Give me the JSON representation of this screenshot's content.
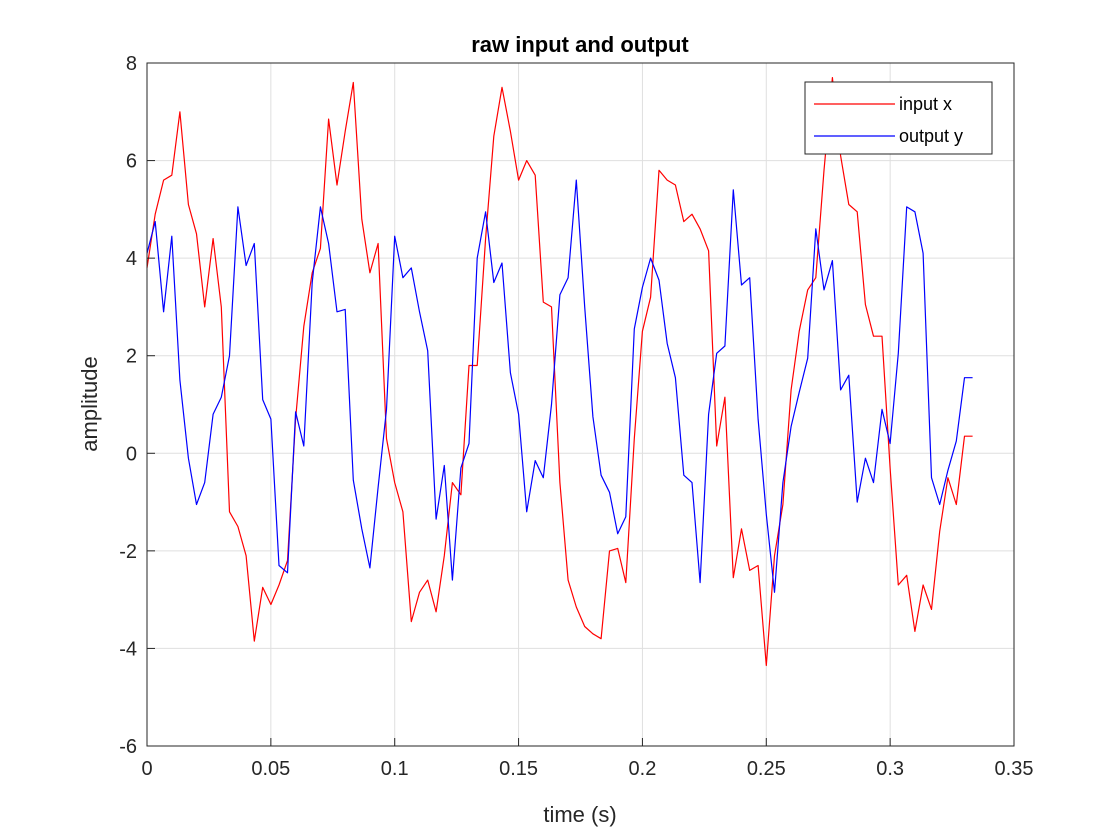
{
  "chart_data": {
    "type": "line",
    "title": "raw input and output",
    "xlabel": "time (s)",
    "ylabel": "amplitude",
    "xlim": [
      0,
      0.35
    ],
    "ylim": [
      -6,
      8
    ],
    "xticks": [
      0,
      0.05,
      0.1,
      0.15,
      0.2,
      0.25,
      0.3,
      0.35
    ],
    "xtick_labels": [
      "0",
      "0.05",
      "0.1",
      "0.15",
      "0.2",
      "0.25",
      "0.3",
      "0.35"
    ],
    "yticks": [
      -6,
      -4,
      -2,
      0,
      2,
      4,
      6,
      8
    ],
    "ytick_labels": [
      "-6",
      "-4",
      "-2",
      "0",
      "2",
      "4",
      "6",
      "8"
    ],
    "grid": true,
    "legend_position": "top-right",
    "series": [
      {
        "name": "input x",
        "color": "#ff0000",
        "x": [
          0,
          0.0033,
          0.0067,
          0.01,
          0.0133,
          0.0167,
          0.02,
          0.0233,
          0.0267,
          0.03,
          0.0333,
          0.0367,
          0.04,
          0.0433,
          0.0467,
          0.05,
          0.0533,
          0.0567,
          0.06,
          0.0633,
          0.0667,
          0.07,
          0.0733,
          0.0767,
          0.08,
          0.0833,
          0.0867,
          0.09,
          0.0933,
          0.0967,
          0.1,
          0.1033,
          0.1067,
          0.11,
          0.1133,
          0.1167,
          0.12,
          0.1233,
          0.1267,
          0.13,
          0.1333,
          0.1367,
          0.14,
          0.1433,
          0.1467,
          0.15,
          0.1533,
          0.1567,
          0.16,
          0.1633,
          0.1667,
          0.17,
          0.1733,
          0.1767,
          0.18,
          0.1833,
          0.1867,
          0.19,
          0.1933,
          0.1967,
          0.2,
          0.2033,
          0.2067,
          0.21,
          0.2133,
          0.2167,
          0.22,
          0.2233,
          0.2267,
          0.23,
          0.2333,
          0.2367,
          0.24,
          0.2433,
          0.2467,
          0.25,
          0.2533,
          0.2567,
          0.26,
          0.2633,
          0.2667,
          0.27,
          0.2733,
          0.2767,
          0.28,
          0.2833,
          0.2867,
          0.29,
          0.2933,
          0.2967,
          0.3,
          0.3033,
          0.3067,
          0.31,
          0.3133,
          0.3167,
          0.32,
          0.3233,
          0.3267,
          0.33,
          0.3333
        ],
        "y": [
          3.8,
          4.9,
          5.6,
          5.7,
          7.0,
          5.1,
          4.5,
          3.0,
          4.4,
          3.0,
          -1.2,
          -1.5,
          -2.1,
          -3.85,
          -2.75,
          -3.1,
          -2.7,
          -2.2,
          0.7,
          2.6,
          3.7,
          4.2,
          6.85,
          5.5,
          6.6,
          7.6,
          4.8,
          3.7,
          4.3,
          0.3,
          -0.6,
          -1.2,
          -3.45,
          -2.85,
          -2.6,
          -3.25,
          -2.1,
          -0.6,
          -0.85,
          1.8,
          1.8,
          4.4,
          6.5,
          7.5,
          6.6,
          5.6,
          6.0,
          5.7,
          3.1,
          3.0,
          -0.6,
          -2.6,
          -3.15,
          -3.55,
          -3.7,
          -3.8,
          -2.0,
          -1.95,
          -2.65,
          0.3,
          2.5,
          3.2,
          5.8,
          5.6,
          5.5,
          4.75,
          4.9,
          4.6,
          4.15,
          0.15,
          1.15,
          -2.55,
          -1.55,
          -2.4,
          -2.3,
          -4.35,
          -2.1,
          -1.05,
          1.3,
          2.5,
          3.35,
          3.6,
          5.8,
          7.7,
          6.1,
          5.1,
          4.95,
          3.05,
          2.4,
          2.4,
          -0.3,
          -2.7,
          -2.5,
          -3.65,
          -2.7,
          -3.2,
          -1.6,
          -0.5,
          -1.05,
          0.35,
          0.35
        ]
      },
      {
        "name": "output y",
        "color": "#0000ff",
        "x": [
          0,
          0.0033,
          0.0067,
          0.01,
          0.0133,
          0.0167,
          0.02,
          0.0233,
          0.0267,
          0.03,
          0.0333,
          0.0367,
          0.04,
          0.0433,
          0.0467,
          0.05,
          0.0533,
          0.0567,
          0.06,
          0.0633,
          0.0667,
          0.07,
          0.0733,
          0.0767,
          0.08,
          0.0833,
          0.0867,
          0.09,
          0.0933,
          0.0967,
          0.1,
          0.1033,
          0.1067,
          0.11,
          0.1133,
          0.1167,
          0.12,
          0.1233,
          0.1267,
          0.13,
          0.1333,
          0.1367,
          0.14,
          0.1433,
          0.1467,
          0.15,
          0.1533,
          0.1567,
          0.16,
          0.1633,
          0.1667,
          0.17,
          0.1733,
          0.1767,
          0.18,
          0.1833,
          0.1867,
          0.19,
          0.1933,
          0.1967,
          0.2,
          0.2033,
          0.2067,
          0.21,
          0.2133,
          0.2167,
          0.22,
          0.2233,
          0.2267,
          0.23,
          0.2333,
          0.2367,
          0.24,
          0.2433,
          0.2467,
          0.25,
          0.2533,
          0.2567,
          0.26,
          0.2633,
          0.2667,
          0.27,
          0.2733,
          0.2767,
          0.28,
          0.2833,
          0.2867,
          0.29,
          0.2933,
          0.2967,
          0.3,
          0.3033,
          0.3067,
          0.31,
          0.3133,
          0.3167,
          0.32,
          0.3233,
          0.3267,
          0.33,
          0.3333
        ],
        "y": [
          4.1,
          4.75,
          2.9,
          4.45,
          1.5,
          -0.1,
          -1.05,
          -0.6,
          0.8,
          1.15,
          2.0,
          5.05,
          3.85,
          4.3,
          1.1,
          0.7,
          -2.3,
          -2.45,
          0.85,
          0.15,
          3.5,
          5.05,
          4.3,
          2.9,
          2.95,
          -0.55,
          -1.55,
          -2.35,
          -0.7,
          0.9,
          4.45,
          3.6,
          3.8,
          2.9,
          2.1,
          -1.35,
          -0.25,
          -2.6,
          -0.3,
          0.2,
          4.0,
          4.95,
          3.5,
          3.9,
          1.65,
          0.8,
          -1.2,
          -0.15,
          -0.5,
          1.0,
          3.25,
          3.6,
          5.6,
          3.0,
          0.75,
          -0.45,
          -0.8,
          -1.65,
          -1.3,
          2.55,
          3.4,
          4.0,
          3.55,
          2.25,
          1.55,
          -0.45,
          -0.6,
          -2.65,
          0.8,
          2.05,
          2.2,
          5.4,
          3.45,
          3.6,
          0.7,
          -1.25,
          -2.85,
          -0.6,
          0.55,
          1.25,
          1.95,
          4.6,
          3.35,
          3.95,
          1.3,
          1.6,
          -1.0,
          -0.1,
          -0.6,
          0.9,
          0.2,
          2.05,
          5.05,
          4.95,
          4.1,
          -0.5,
          -1.05,
          -0.35,
          0.25,
          1.55,
          1.55
        ]
      }
    ]
  }
}
